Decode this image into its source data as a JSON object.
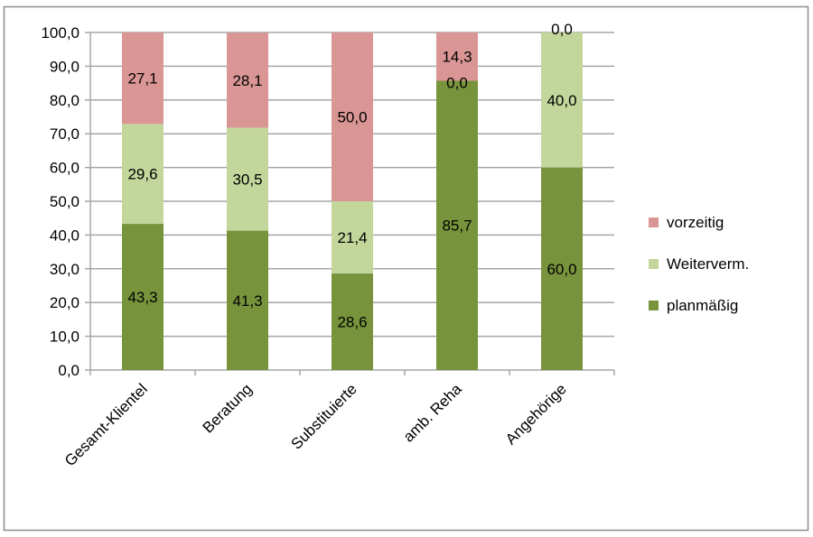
{
  "chart_data": {
    "type": "bar",
    "stacked": true,
    "categories": [
      "Gesamt-Klientel",
      "Beratung",
      "Substituierte",
      "amb. Reha",
      "Angehörige"
    ],
    "series": [
      {
        "name": "planmäßig",
        "color": "#77933C",
        "values": [
          43.3,
          41.3,
          28.6,
          85.7,
          60.0
        ],
        "labels": [
          "43,3",
          "41,3",
          "28,6",
          "85,7",
          "60,0"
        ]
      },
      {
        "name": "Weiterverm.",
        "color": "#C3D69B",
        "values": [
          29.6,
          30.5,
          21.4,
          0.0,
          40.0
        ],
        "labels": [
          "29,6",
          "30,5",
          "21,4",
          "0,0",
          "40,0"
        ]
      },
      {
        "name": "vorzeitig",
        "color": "#D99694",
        "values": [
          27.1,
          28.1,
          50.0,
          14.3,
          0.0
        ],
        "labels": [
          "27,1",
          "28,1",
          "50,0",
          "14,3",
          "0,0"
        ]
      }
    ],
    "yticks": [
      "0,0",
      "10,0",
      "20,0",
      "30,0",
      "40,0",
      "50,0",
      "60,0",
      "70,0",
      "80,0",
      "90,0",
      "100,0"
    ],
    "ylim": [
      0,
      100
    ],
    "grid": true,
    "legend": "right",
    "title": "",
    "xlabel": "",
    "ylabel": ""
  }
}
